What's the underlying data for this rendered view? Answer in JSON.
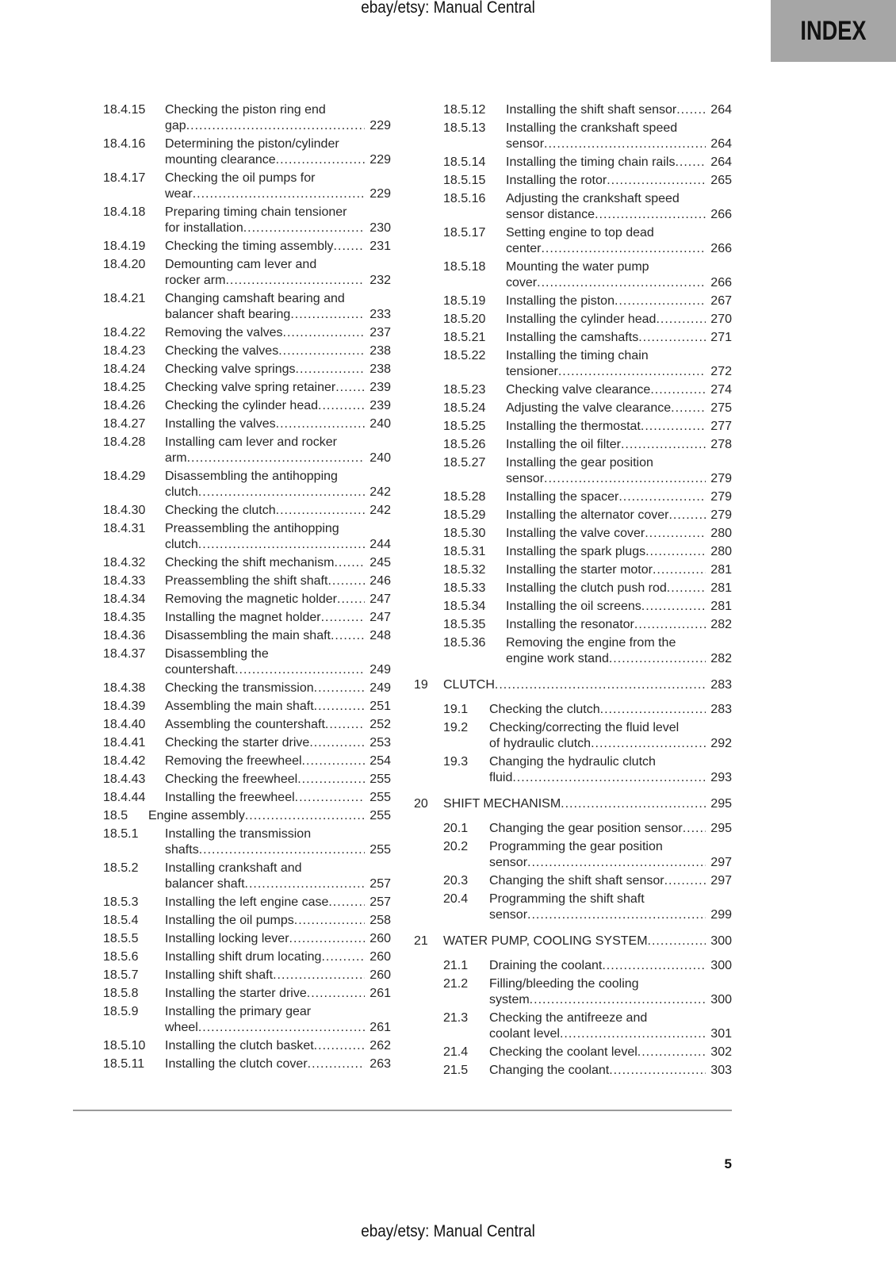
{
  "watermark_top": "ebay/etsy: Manual Central",
  "watermark_bottom": "ebay/etsy: Manual Central",
  "index_tab": "INDEX",
  "page_number": "5",
  "left_column": [
    {
      "num": "18.4.15",
      "lines": [
        "Checking the piston ring end",
        "gap"
      ],
      "page": "229"
    },
    {
      "num": "18.4.16",
      "lines": [
        "Determining the piston/cylinder",
        "mounting clearance"
      ],
      "page": "229"
    },
    {
      "num": "18.4.17",
      "lines": [
        "Checking the oil pumps for",
        "wear"
      ],
      "page": "229"
    },
    {
      "num": "18.4.18",
      "lines": [
        "Preparing timing chain tensioner",
        "for installation"
      ],
      "page": "230"
    },
    {
      "num": "18.4.19",
      "lines": [
        "Checking the timing assembly"
      ],
      "page": "231"
    },
    {
      "num": "18.4.20",
      "lines": [
        "Demounting cam lever and",
        "rocker arm"
      ],
      "page": "232"
    },
    {
      "num": "18.4.21",
      "lines": [
        "Changing camshaft bearing and",
        "balancer shaft bearing"
      ],
      "page": "233"
    },
    {
      "num": "18.4.22",
      "lines": [
        "Removing the valves"
      ],
      "page": "237"
    },
    {
      "num": "18.4.23",
      "lines": [
        "Checking the valves"
      ],
      "page": "238"
    },
    {
      "num": "18.4.24",
      "lines": [
        "Checking valve springs"
      ],
      "page": "238"
    },
    {
      "num": "18.4.25",
      "lines": [
        "Checking valve spring retainer"
      ],
      "page": "239"
    },
    {
      "num": "18.4.26",
      "lines": [
        "Checking the cylinder head"
      ],
      "page": "239"
    },
    {
      "num": "18.4.27",
      "lines": [
        "Installing the valves"
      ],
      "page": "240"
    },
    {
      "num": "18.4.28",
      "lines": [
        "Installing cam lever and rocker",
        "arm"
      ],
      "page": "240"
    },
    {
      "num": "18.4.29",
      "lines": [
        "Disassembling the antihopping",
        "clutch"
      ],
      "page": "242"
    },
    {
      "num": "18.4.30",
      "lines": [
        "Checking the clutch"
      ],
      "page": "242"
    },
    {
      "num": "18.4.31",
      "lines": [
        "Preassembling the antihopping",
        "clutch"
      ],
      "page": "244"
    },
    {
      "num": "18.4.32",
      "lines": [
        "Checking the shift mechanism"
      ],
      "page": "245"
    },
    {
      "num": "18.4.33",
      "lines": [
        "Preassembling the shift shaft"
      ],
      "page": "246"
    },
    {
      "num": "18.4.34",
      "lines": [
        "Removing the magnetic holder"
      ],
      "page": "247"
    },
    {
      "num": "18.4.35",
      "lines": [
        "Installing the magnet holder"
      ],
      "page": "247"
    },
    {
      "num": "18.4.36",
      "lines": [
        "Disassembling the main shaft"
      ],
      "page": "248"
    },
    {
      "num": "18.4.37",
      "lines": [
        "Disassembling the",
        "countershaft"
      ],
      "page": "249"
    },
    {
      "num": "18.4.38",
      "lines": [
        "Checking the transmission"
      ],
      "page": "249"
    },
    {
      "num": "18.4.39",
      "lines": [
        "Assembling the main shaft"
      ],
      "page": "251"
    },
    {
      "num": "18.4.40",
      "lines": [
        "Assembling the countershaft"
      ],
      "page": "252"
    },
    {
      "num": "18.4.41",
      "lines": [
        "Checking the starter drive"
      ],
      "page": "253"
    },
    {
      "num": "18.4.42",
      "lines": [
        "Removing the freewheel"
      ],
      "page": "254"
    },
    {
      "num": "18.4.43",
      "lines": [
        "Checking the freewheel"
      ],
      "page": "255"
    },
    {
      "num": "18.4.44",
      "lines": [
        "Installing the freewheel"
      ],
      "page": "255"
    },
    {
      "num": "18.5",
      "lines": [
        "Engine assembly"
      ],
      "page": "255",
      "level": 2
    },
    {
      "num": "18.5.1",
      "lines": [
        "Installing the transmission",
        "shafts"
      ],
      "page": "255"
    },
    {
      "num": "18.5.2",
      "lines": [
        "Installing crankshaft and",
        "balancer shaft"
      ],
      "page": "257"
    },
    {
      "num": "18.5.3",
      "lines": [
        "Installing the left engine case"
      ],
      "page": "257"
    },
    {
      "num": "18.5.4",
      "lines": [
        "Installing the oil pumps"
      ],
      "page": "258"
    },
    {
      "num": "18.5.5",
      "lines": [
        "Installing locking lever"
      ],
      "page": "260"
    },
    {
      "num": "18.5.6",
      "lines": [
        "Installing shift drum locating"
      ],
      "page": "260"
    },
    {
      "num": "18.5.7",
      "lines": [
        "Installing shift shaft"
      ],
      "page": "260"
    },
    {
      "num": "18.5.8",
      "lines": [
        "Installing the starter drive"
      ],
      "page": "261"
    },
    {
      "num": "18.5.9",
      "lines": [
        "Installing the primary gear",
        "wheel"
      ],
      "page": "261"
    },
    {
      "num": "18.5.10",
      "lines": [
        "Installing the clutch basket"
      ],
      "page": "262"
    },
    {
      "num": "18.5.11",
      "lines": [
        "Installing the clutch cover"
      ],
      "page": "263"
    }
  ],
  "right_column": [
    {
      "num": "18.5.12",
      "lines": [
        "Installing the shift shaft sensor"
      ],
      "page": "264",
      "kind": "sub3"
    },
    {
      "num": "18.5.13",
      "lines": [
        "Installing the crankshaft speed",
        "sensor"
      ],
      "page": "264",
      "kind": "sub3"
    },
    {
      "num": "18.5.14",
      "lines": [
        "Installing the timing chain rails"
      ],
      "page": "264",
      "kind": "sub3"
    },
    {
      "num": "18.5.15",
      "lines": [
        "Installing the rotor"
      ],
      "page": "265",
      "kind": "sub3"
    },
    {
      "num": "18.5.16",
      "lines": [
        "Adjusting the crankshaft speed",
        "sensor distance"
      ],
      "page": "266",
      "kind": "sub3"
    },
    {
      "num": "18.5.17",
      "lines": [
        "Setting engine to top dead",
        "center"
      ],
      "page": "266",
      "kind": "sub3"
    },
    {
      "num": "18.5.18",
      "lines": [
        "Mounting the water pump",
        "cover"
      ],
      "page": "266",
      "kind": "sub3"
    },
    {
      "num": "18.5.19",
      "lines": [
        "Installing the piston"
      ],
      "page": "267",
      "kind": "sub3"
    },
    {
      "num": "18.5.20",
      "lines": [
        "Installing the cylinder head"
      ],
      "page": "270",
      "kind": "sub3"
    },
    {
      "num": "18.5.21",
      "lines": [
        "Installing the camshafts"
      ],
      "page": "271",
      "kind": "sub3"
    },
    {
      "num": "18.5.22",
      "lines": [
        "Installing the timing chain",
        "tensioner"
      ],
      "page": "272",
      "kind": "sub3"
    },
    {
      "num": "18.5.23",
      "lines": [
        "Checking valve clearance"
      ],
      "page": "274",
      "kind": "sub3"
    },
    {
      "num": "18.5.24",
      "lines": [
        "Adjusting the valve clearance"
      ],
      "page": "275",
      "kind": "sub3"
    },
    {
      "num": "18.5.25",
      "lines": [
        "Installing the thermostat"
      ],
      "page": "277",
      "kind": "sub3"
    },
    {
      "num": "18.5.26",
      "lines": [
        "Installing the oil filter"
      ],
      "page": "278",
      "kind": "sub3"
    },
    {
      "num": "18.5.27",
      "lines": [
        "Installing the gear position",
        "sensor"
      ],
      "page": "279",
      "kind": "sub3"
    },
    {
      "num": "18.5.28",
      "lines": [
        "Installing the spacer"
      ],
      "page": "279",
      "kind": "sub3"
    },
    {
      "num": "18.5.29",
      "lines": [
        "Installing the alternator cover"
      ],
      "page": "279",
      "kind": "sub3"
    },
    {
      "num": "18.5.30",
      "lines": [
        "Installing the valve cover"
      ],
      "page": "280",
      "kind": "sub3"
    },
    {
      "num": "18.5.31",
      "lines": [
        "Installing the spark plugs"
      ],
      "page": "280",
      "kind": "sub3"
    },
    {
      "num": "18.5.32",
      "lines": [
        "Installing the starter motor"
      ],
      "page": "281",
      "kind": "sub3"
    },
    {
      "num": "18.5.33",
      "lines": [
        "Installing the clutch push rod"
      ],
      "page": "281",
      "kind": "sub3"
    },
    {
      "num": "18.5.34",
      "lines": [
        "Installing the oil screens"
      ],
      "page": "281",
      "kind": "sub3"
    },
    {
      "num": "18.5.35",
      "lines": [
        "Installing the resonator"
      ],
      "page": "282",
      "kind": "sub3"
    },
    {
      "num": "18.5.36",
      "lines": [
        "Removing the engine from the",
        "engine work stand"
      ],
      "page": "282",
      "kind": "sub3"
    },
    {
      "num": "19",
      "lines": [
        "CLUTCH"
      ],
      "page": "283",
      "kind": "chap"
    },
    {
      "num": "19.1",
      "lines": [
        "Checking the clutch"
      ],
      "page": "283",
      "kind": "sub2"
    },
    {
      "num": "19.2",
      "lines": [
        "Checking/correcting the fluid level",
        "of hydraulic clutch"
      ],
      "page": "292",
      "kind": "sub2"
    },
    {
      "num": "19.3",
      "lines": [
        "Changing the hydraulic clutch",
        "fluid"
      ],
      "page": "293",
      "kind": "sub2"
    },
    {
      "num": "20",
      "lines": [
        "SHIFT MECHANISM"
      ],
      "page": "295",
      "kind": "chap"
    },
    {
      "num": "20.1",
      "lines": [
        "Changing the gear position sensor"
      ],
      "page": "295",
      "kind": "sub2"
    },
    {
      "num": "20.2",
      "lines": [
        "Programming the gear position",
        "sensor"
      ],
      "page": "297",
      "kind": "sub2"
    },
    {
      "num": "20.3",
      "lines": [
        "Changing the shift shaft sensor"
      ],
      "page": "297",
      "kind": "sub2"
    },
    {
      "num": "20.4",
      "lines": [
        "Programming the shift shaft",
        "sensor"
      ],
      "page": "299",
      "kind": "sub2"
    },
    {
      "num": "21",
      "lines": [
        "WATER PUMP, COOLING SYSTEM"
      ],
      "page": "300",
      "kind": "chap"
    },
    {
      "num": "21.1",
      "lines": [
        "Draining the coolant"
      ],
      "page": "300",
      "kind": "sub2"
    },
    {
      "num": "21.2",
      "lines": [
        "Filling/bleeding the cooling",
        "system"
      ],
      "page": "300",
      "kind": "sub2"
    },
    {
      "num": "21.3",
      "lines": [
        "Checking the antifreeze and",
        "coolant level"
      ],
      "page": "301",
      "kind": "sub2"
    },
    {
      "num": "21.4",
      "lines": [
        "Checking the coolant level"
      ],
      "page": "302",
      "kind": "sub2"
    },
    {
      "num": "21.5",
      "lines": [
        "Changing the coolant"
      ],
      "page": "303",
      "kind": "sub2"
    }
  ]
}
